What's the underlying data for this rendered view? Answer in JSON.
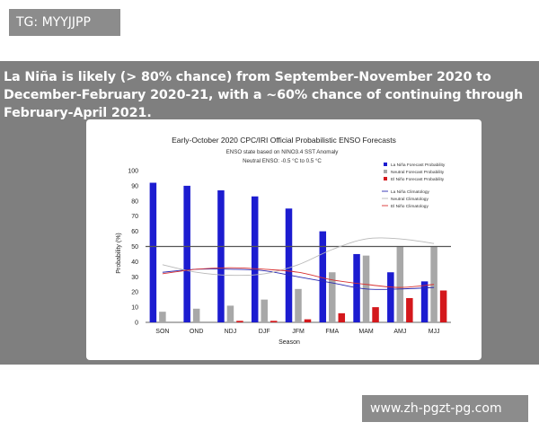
{
  "top_tag": "TG: MYYJJPP",
  "headline": "La Niña is likely (> 80% chance) from September-November 2020 to December-February 2020-21, with a ~60% chance of continuing through February-April 2021.",
  "bottom_tag": "www.zh-pgzt-pg.com",
  "colors": {
    "la_nina": "#1c1cd0",
    "neutral": "#a8a8a8",
    "el_nino": "#d4181c",
    "la_nina_clim": "#2a2ab0",
    "neutral_clim": "#b8b8b8",
    "el_nino_clim": "#d83030",
    "threshold": "#555555"
  },
  "chart_data": {
    "type": "bar",
    "title": "Early-October 2020 CPC/IRI Official Probabilistic ENSO Forecasts",
    "subtitle1": "ENSO state based on NINO3.4 SST Anomaly",
    "subtitle2": "Neutral ENSO: -0.5 °C to 0.5 °C",
    "xlabel": "Season",
    "ylabel": "Probability (%)",
    "ylim": [
      0,
      100
    ],
    "yticks": [
      0,
      10,
      20,
      30,
      40,
      50,
      60,
      70,
      80,
      90,
      100
    ],
    "reference_line": 50,
    "categories": [
      "SON",
      "OND",
      "NDJ",
      "DJF",
      "JFM",
      "FMA",
      "MAM",
      "AMJ",
      "MJJ"
    ],
    "series": [
      {
        "name": "La Niña Forecast Probability",
        "values": [
          92,
          90,
          87,
          83,
          75,
          60,
          45,
          33,
          27
        ]
      },
      {
        "name": "Neutral Forecast Probability",
        "values": [
          7,
          9,
          11,
          15,
          22,
          33,
          44,
          50,
          50
        ]
      },
      {
        "name": "El Niño Forecast Probability",
        "values": [
          0,
          0,
          1,
          1,
          2,
          6,
          10,
          16,
          21
        ]
      }
    ],
    "climatology": [
      {
        "name": "La Niña Climatology",
        "values": [
          33,
          35,
          35,
          34,
          30,
          26,
          22,
          22,
          23
        ]
      },
      {
        "name": "Neutral Climatology",
        "values": [
          38,
          33,
          31,
          32,
          38,
          48,
          55,
          55,
          52
        ]
      },
      {
        "name": "El Niño Climatology",
        "values": [
          32,
          35,
          36,
          35,
          33,
          28,
          25,
          23,
          25
        ]
      }
    ],
    "legend_position": "top-right"
  }
}
